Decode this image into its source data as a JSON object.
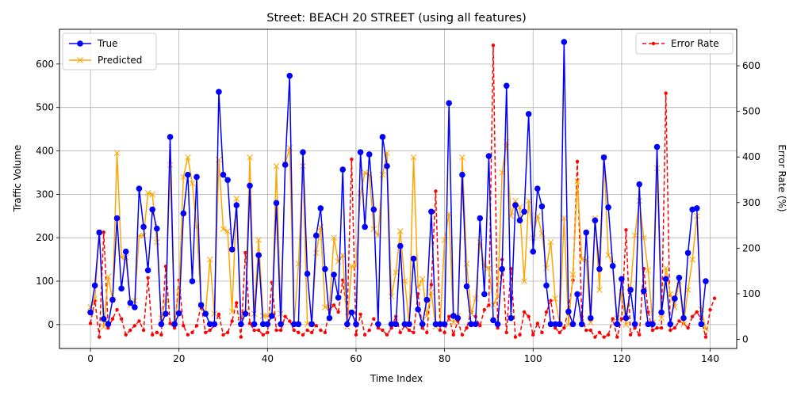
{
  "chart_data": {
    "type": "line",
    "title": "Street: BEACH 20 STREET (using all features)",
    "xlabel": "Time Index",
    "ylabel": "Traffic Volume",
    "y2label": "Error Rate (%)",
    "xlim": [
      -7,
      146
    ],
    "ylim": [
      -55,
      680
    ],
    "y2lim": [
      -20,
      680
    ],
    "x_ticks": [
      0,
      20,
      40,
      60,
      80,
      100,
      120,
      140
    ],
    "y_ticks": [
      0,
      100,
      200,
      300,
      400,
      500,
      600
    ],
    "y2_ticks": [
      0,
      100,
      200,
      300,
      400,
      500,
      600
    ],
    "grid": true,
    "legend_left": "top-left",
    "legend_right": "top-right",
    "colors": {
      "true": "#0000ff",
      "predicted": "#ffa500",
      "error": "#ff0000"
    },
    "series": [
      {
        "name": "True",
        "axis": "left",
        "style": "line-dot",
        "values": [
          28,
          90,
          212,
          13,
          1,
          57,
          245,
          83,
          168,
          50,
          40,
          313,
          225,
          125,
          265,
          221,
          1,
          25,
          432,
          1,
          26,
          256,
          345,
          100,
          340,
          45,
          25,
          1,
          1,
          536,
          345,
          333,
          173,
          275,
          1,
          25,
          320,
          1,
          160,
          1,
          1,
          20,
          280,
          1,
          368,
          573,
          1,
          1,
          397,
          117,
          1,
          205,
          268,
          128,
          15,
          115,
          62,
          357,
          1,
          28,
          1,
          397,
          225,
          392,
          265,
          1,
          432,
          365,
          1,
          1,
          181,
          1,
          1,
          152,
          35,
          1,
          57,
          260,
          1,
          1,
          1,
          510,
          20,
          15,
          345,
          88,
          1,
          1,
          245,
          70,
          388,
          10,
          1,
          128,
          550,
          15,
          275,
          240,
          260,
          485,
          168,
          313,
          272,
          90,
          1,
          1,
          1,
          651,
          30,
          1,
          70,
          1,
          212,
          15,
          240,
          128,
          385,
          270,
          135,
          1,
          105,
          15,
          80,
          1,
          323,
          77,
          1,
          1,
          409,
          28,
          105,
          1,
          60,
          108,
          15,
          165,
          265,
          268,
          1,
          100
        ]
      },
      {
        "name": "Predicted",
        "axis": "left",
        "style": "line-x",
        "values": [
          40,
          60,
          213,
          -5,
          110,
          57,
          395,
          155,
          155,
          45,
          55,
          205,
          205,
          303,
          300,
          190,
          15,
          55,
          368,
          2,
          75,
          340,
          385,
          325,
          225,
          45,
          25,
          150,
          25,
          380,
          220,
          215,
          30,
          290,
          20,
          30,
          385,
          25,
          195,
          20,
          20,
          25,
          365,
          25,
          370,
          407,
          1,
          140,
          365,
          1,
          1,
          165,
          225,
          40,
          40,
          200,
          145,
          160,
          -5,
          135,
          135,
          302,
          350,
          345,
          220,
          205,
          345,
          395,
          65,
          120,
          215,
          100,
          1,
          385,
          85,
          105,
          20,
          75,
          -5,
          1,
          195,
          255,
          5,
          20,
          385,
          140,
          25,
          60,
          190,
          135,
          130,
          45,
          65,
          350,
          420,
          250,
          285,
          270,
          100,
          285,
          200,
          250,
          210,
          130,
          190,
          60,
          1,
          245,
          0,
          115,
          330,
          150,
          150,
          5,
          245,
          80,
          385,
          160,
          140,
          15,
          75,
          0,
          80,
          205,
          285,
          200,
          125,
          5,
          360,
          15,
          130,
          70,
          40,
          100,
          1,
          80,
          150,
          250,
          35,
          -10
        ]
      },
      {
        "name": "Error Rate",
        "axis": "right",
        "style": "dashed-dot",
        "values": [
          35,
          85,
          5,
          235,
          25,
          45,
          65,
          45,
          10,
          20,
          30,
          40,
          20,
          135,
          10,
          15,
          10,
          160,
          35,
          25,
          130,
          30,
          10,
          15,
          30,
          75,
          15,
          20,
          30,
          55,
          10,
          15,
          40,
          80,
          5,
          190,
          35,
          20,
          20,
          10,
          15,
          125,
          20,
          20,
          50,
          40,
          20,
          15,
          10,
          20,
          15,
          30,
          20,
          15,
          65,
          75,
          60,
          130,
          55,
          395,
          10,
          55,
          10,
          20,
          45,
          25,
          20,
          10,
          25,
          50,
          15,
          30,
          20,
          15,
          100,
          25,
          15,
          120,
          325,
          20,
          15,
          50,
          10,
          40,
          10,
          25,
          60,
          50,
          30,
          65,
          75,
          645,
          25,
          175,
          15,
          155,
          5,
          10,
          60,
          50,
          10,
          35,
          15,
          60,
          85,
          25,
          15,
          25,
          65,
          130,
          390,
          50,
          20,
          20,
          5,
          15,
          5,
          10,
          45,
          5,
          45,
          240,
          10,
          25,
          10,
          155,
          60,
          20,
          25,
          25,
          540,
          20,
          25,
          40,
          35,
          25,
          50,
          60,
          45,
          5,
          65,
          90
        ]
      }
    ]
  }
}
